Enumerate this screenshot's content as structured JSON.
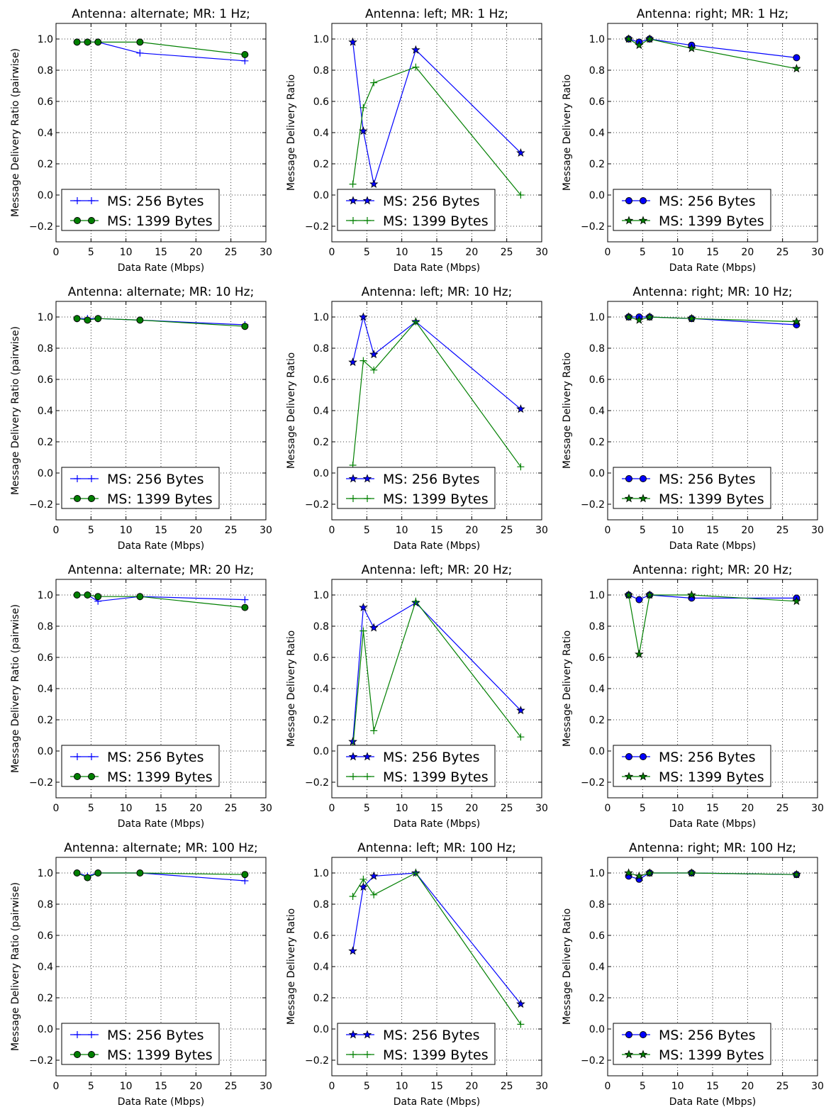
{
  "colors": {
    "blue": "#0000ff",
    "green": "#007f00",
    "black": "#000000",
    "grid": "#000000"
  },
  "chart_data": [
    {
      "type": "line",
      "title": "Antenna: alternate; MR: 1 Hz;",
      "xlabel": "Data Rate (Mbps)",
      "ylabel": "Message Delivery Ratio (pairwise)",
      "xlim": [
        0,
        30
      ],
      "ylim": [
        -0.3,
        1.1
      ],
      "xticks": [
        "0",
        "5",
        "10",
        "15",
        "20",
        "25",
        "30"
      ],
      "yticks": [
        "−0.2",
        "0.0",
        "0.2",
        "0.4",
        "0.6",
        "0.8",
        "1.0"
      ],
      "grid": true,
      "legend": "lower-left",
      "series": [
        {
          "name": "MS: 256 Bytes",
          "color": "blue",
          "marker": "plus",
          "x": [
            3,
            4.5,
            6,
            12,
            27
          ],
          "y": [
            0.98,
            0.98,
            0.98,
            0.91,
            0.86
          ]
        },
        {
          "name": "MS: 1399 Bytes",
          "color": "green",
          "marker": "circle",
          "x": [
            3,
            4.5,
            6,
            12,
            27
          ],
          "y": [
            0.98,
            0.98,
            0.98,
            0.98,
            0.9
          ]
        }
      ]
    },
    {
      "type": "line",
      "title": "Antenna: left; MR: 1 Hz;",
      "xlabel": "Data Rate (Mbps)",
      "ylabel": "Message Delivery Ratio",
      "xlim": [
        0,
        30
      ],
      "ylim": [
        -0.3,
        1.1
      ],
      "xticks": [
        "0",
        "5",
        "10",
        "15",
        "20",
        "25",
        "30"
      ],
      "yticks": [
        "−0.2",
        "0.0",
        "0.2",
        "0.4",
        "0.6",
        "0.8",
        "1.0"
      ],
      "grid": true,
      "legend": "lower-left",
      "series": [
        {
          "name": "MS: 256 Bytes",
          "color": "blue",
          "marker": "star",
          "x": [
            3,
            4.5,
            6,
            12,
            27
          ],
          "y": [
            0.98,
            0.41,
            0.07,
            0.93,
            0.27
          ]
        },
        {
          "name": "MS: 1399 Bytes",
          "color": "green",
          "marker": "plus",
          "x": [
            3,
            4.5,
            6,
            12,
            27
          ],
          "y": [
            0.07,
            0.56,
            0.72,
            0.82,
            0.0
          ]
        }
      ]
    },
    {
      "type": "line",
      "title": "Antenna: right; MR: 1 Hz;",
      "xlabel": "Data Rate (Mbps)",
      "ylabel": "Message Delivery Ratio",
      "xlim": [
        0,
        30
      ],
      "ylim": [
        -0.3,
        1.1
      ],
      "xticks": [
        "0",
        "5",
        "10",
        "15",
        "20",
        "25",
        "30"
      ],
      "yticks": [
        "−0.2",
        "0.0",
        "0.2",
        "0.4",
        "0.6",
        "0.8",
        "1.0"
      ],
      "grid": true,
      "legend": "lower-left",
      "series": [
        {
          "name": "MS: 256 Bytes",
          "color": "blue",
          "marker": "circle",
          "x": [
            3,
            4.5,
            6,
            12,
            27
          ],
          "y": [
            1.0,
            0.98,
            1.0,
            0.96,
            0.88
          ]
        },
        {
          "name": "MS: 1399 Bytes",
          "color": "green",
          "marker": "star",
          "x": [
            3,
            4.5,
            6,
            12,
            27
          ],
          "y": [
            1.0,
            0.96,
            1.0,
            0.94,
            0.81
          ]
        }
      ]
    },
    {
      "type": "line",
      "title": "Antenna: alternate; MR: 10 Hz;",
      "xlabel": "Data Rate (Mbps)",
      "ylabel": "Message Delivery Ratio (pairwise)",
      "xlim": [
        0,
        30
      ],
      "ylim": [
        -0.3,
        1.1
      ],
      "xticks": [
        "0",
        "5",
        "10",
        "15",
        "20",
        "25",
        "30"
      ],
      "yticks": [
        "−0.2",
        "0.0",
        "0.2",
        "0.4",
        "0.6",
        "0.8",
        "1.0"
      ],
      "grid": true,
      "legend": "lower-left",
      "series": [
        {
          "name": "MS: 256 Bytes",
          "color": "blue",
          "marker": "plus",
          "x": [
            3,
            4.5,
            6,
            12,
            27
          ],
          "y": [
            0.99,
            0.99,
            0.99,
            0.98,
            0.95
          ]
        },
        {
          "name": "MS: 1399 Bytes",
          "color": "green",
          "marker": "circle",
          "x": [
            3,
            4.5,
            6,
            12,
            27
          ],
          "y": [
            0.99,
            0.98,
            0.99,
            0.98,
            0.94
          ]
        }
      ]
    },
    {
      "type": "line",
      "title": "Antenna: left; MR: 10 Hz;",
      "xlabel": "Data Rate (Mbps)",
      "ylabel": "Message Delivery Ratio",
      "xlim": [
        0,
        30
      ],
      "ylim": [
        -0.3,
        1.1
      ],
      "xticks": [
        "0",
        "5",
        "10",
        "15",
        "20",
        "25",
        "30"
      ],
      "yticks": [
        "−0.2",
        "0.0",
        "0.2",
        "0.4",
        "0.6",
        "0.8",
        "1.0"
      ],
      "grid": true,
      "legend": "lower-left",
      "series": [
        {
          "name": "MS: 256 Bytes",
          "color": "blue",
          "marker": "star",
          "x": [
            3,
            4.5,
            6,
            12,
            27
          ],
          "y": [
            0.71,
            1.0,
            0.76,
            0.97,
            0.41
          ]
        },
        {
          "name": "MS: 1399 Bytes",
          "color": "green",
          "marker": "plus",
          "x": [
            3,
            4.5,
            6,
            12,
            27
          ],
          "y": [
            0.05,
            0.72,
            0.66,
            0.97,
            0.04
          ]
        }
      ]
    },
    {
      "type": "line",
      "title": "Antenna: right; MR: 10 Hz;",
      "xlabel": "Data Rate (Mbps)",
      "ylabel": "Message Delivery Ratio",
      "xlim": [
        0,
        30
      ],
      "ylim": [
        -0.3,
        1.1
      ],
      "xticks": [
        "0",
        "5",
        "10",
        "15",
        "20",
        "25",
        "30"
      ],
      "yticks": [
        "−0.2",
        "0.0",
        "0.2",
        "0.4",
        "0.6",
        "0.8",
        "1.0"
      ],
      "grid": true,
      "legend": "lower-left",
      "series": [
        {
          "name": "MS: 256 Bytes",
          "color": "blue",
          "marker": "circle",
          "x": [
            3,
            4.5,
            6,
            12,
            27
          ],
          "y": [
            1.0,
            1.0,
            1.0,
            0.99,
            0.95
          ]
        },
        {
          "name": "MS: 1399 Bytes",
          "color": "green",
          "marker": "star",
          "x": [
            3,
            4.5,
            6,
            12,
            27
          ],
          "y": [
            1.0,
            0.98,
            1.0,
            0.99,
            0.97
          ]
        }
      ]
    },
    {
      "type": "line",
      "title": "Antenna: alternate; MR: 20 Hz;",
      "xlabel": "Data Rate (Mbps)",
      "ylabel": "Message Delivery Ratio (pairwise)",
      "xlim": [
        0,
        30
      ],
      "ylim": [
        -0.3,
        1.1
      ],
      "xticks": [
        "0",
        "5",
        "10",
        "15",
        "20",
        "25",
        "30"
      ],
      "yticks": [
        "−0.2",
        "0.0",
        "0.2",
        "0.4",
        "0.6",
        "0.8",
        "1.0"
      ],
      "grid": true,
      "legend": "lower-left",
      "series": [
        {
          "name": "MS: 256 Bytes",
          "color": "blue",
          "marker": "plus",
          "x": [
            3,
            4.5,
            6,
            12,
            27
          ],
          "y": [
            1.0,
            1.0,
            0.96,
            0.99,
            0.97
          ]
        },
        {
          "name": "MS: 1399 Bytes",
          "color": "green",
          "marker": "circle",
          "x": [
            3,
            4.5,
            6,
            12,
            27
          ],
          "y": [
            1.0,
            1.0,
            0.99,
            0.99,
            0.92
          ]
        }
      ]
    },
    {
      "type": "line",
      "title": "Antenna: left; MR: 20 Hz;",
      "xlabel": "Data Rate (Mbps)",
      "ylabel": "Message Delivery Ratio",
      "xlim": [
        0,
        30
      ],
      "ylim": [
        -0.3,
        1.1
      ],
      "xticks": [
        "0",
        "5",
        "10",
        "15",
        "20",
        "25",
        "30"
      ],
      "yticks": [
        "−0.2",
        "0.0",
        "0.2",
        "0.4",
        "0.6",
        "0.8",
        "1.0"
      ],
      "grid": true,
      "legend": "lower-left",
      "series": [
        {
          "name": "MS: 256 Bytes",
          "color": "blue",
          "marker": "star",
          "x": [
            3,
            4.5,
            6,
            12,
            27
          ],
          "y": [
            0.06,
            0.92,
            0.79,
            0.95,
            0.26
          ]
        },
        {
          "name": "MS: 1399 Bytes",
          "color": "green",
          "marker": "plus",
          "x": [
            3,
            4.5,
            6,
            12,
            27
          ],
          "y": [
            0.02,
            0.77,
            0.13,
            0.96,
            0.09
          ]
        }
      ]
    },
    {
      "type": "line",
      "title": "Antenna: right; MR: 20 Hz;",
      "xlabel": "Data Rate (Mbps)",
      "ylabel": "Message Delivery Ratio",
      "xlim": [
        0,
        30
      ],
      "ylim": [
        -0.3,
        1.1
      ],
      "xticks": [
        "0",
        "5",
        "10",
        "15",
        "20",
        "25",
        "30"
      ],
      "yticks": [
        "−0.2",
        "0.0",
        "0.2",
        "0.4",
        "0.6",
        "0.8",
        "1.0"
      ],
      "grid": true,
      "legend": "lower-left",
      "series": [
        {
          "name": "MS: 256 Bytes",
          "color": "blue",
          "marker": "circle",
          "x": [
            3,
            4.5,
            6,
            12,
            27
          ],
          "y": [
            1.0,
            0.97,
            1.0,
            0.98,
            0.98
          ]
        },
        {
          "name": "MS: 1399 Bytes",
          "color": "green",
          "marker": "star",
          "x": [
            3,
            4.5,
            6,
            12,
            27
          ],
          "y": [
            1.0,
            0.62,
            1.0,
            1.0,
            0.96
          ]
        }
      ]
    },
    {
      "type": "line",
      "title": "Antenna: alternate; MR: 100 Hz;",
      "xlabel": "Data Rate (Mbps)",
      "ylabel": "Message Delivery Ratio (pairwise)",
      "xlim": [
        0,
        30
      ],
      "ylim": [
        -0.3,
        1.1
      ],
      "xticks": [
        "0",
        "5",
        "10",
        "15",
        "20",
        "25",
        "30"
      ],
      "yticks": [
        "−0.2",
        "0.0",
        "0.2",
        "0.4",
        "0.6",
        "0.8",
        "1.0"
      ],
      "grid": true,
      "legend": "lower-left",
      "series": [
        {
          "name": "MS: 256 Bytes",
          "color": "blue",
          "marker": "plus",
          "x": [
            3,
            4.5,
            6,
            12,
            27
          ],
          "y": [
            1.0,
            0.98,
            1.0,
            1.0,
            0.95
          ]
        },
        {
          "name": "MS: 1399 Bytes",
          "color": "green",
          "marker": "circle",
          "x": [
            3,
            4.5,
            6,
            12,
            27
          ],
          "y": [
            1.0,
            0.97,
            1.0,
            1.0,
            0.99
          ]
        }
      ]
    },
    {
      "type": "line",
      "title": "Antenna: left; MR: 100 Hz;",
      "xlabel": "Data Rate (Mbps)",
      "ylabel": "Message Delivery Ratio",
      "xlim": [
        0,
        30
      ],
      "ylim": [
        -0.3,
        1.1
      ],
      "xticks": [
        "0",
        "5",
        "10",
        "15",
        "20",
        "25",
        "30"
      ],
      "yticks": [
        "−0.2",
        "0.0",
        "0.2",
        "0.4",
        "0.6",
        "0.8",
        "1.0"
      ],
      "grid": true,
      "legend": "lower-left",
      "series": [
        {
          "name": "MS: 256 Bytes",
          "color": "blue",
          "marker": "star",
          "x": [
            3,
            4.5,
            6,
            12,
            27
          ],
          "y": [
            0.5,
            0.91,
            0.98,
            1.0,
            0.16
          ]
        },
        {
          "name": "MS: 1399 Bytes",
          "color": "green",
          "marker": "plus",
          "x": [
            3,
            4.5,
            6,
            12,
            27
          ],
          "y": [
            0.85,
            0.96,
            0.86,
            1.0,
            0.03
          ]
        }
      ]
    },
    {
      "type": "line",
      "title": "Antenna: right; MR: 100 Hz;",
      "xlabel": "Data Rate (Mbps)",
      "ylabel": "Message Delivery Ratio",
      "xlim": [
        0,
        30
      ],
      "ylim": [
        -0.3,
        1.1
      ],
      "xticks": [
        "0",
        "5",
        "10",
        "15",
        "20",
        "25",
        "30"
      ],
      "yticks": [
        "−0.2",
        "0.0",
        "0.2",
        "0.4",
        "0.6",
        "0.8",
        "1.0"
      ],
      "grid": true,
      "legend": "lower-left",
      "series": [
        {
          "name": "MS: 256 Bytes",
          "color": "blue",
          "marker": "circle",
          "x": [
            3,
            4.5,
            6,
            12,
            27
          ],
          "y": [
            0.98,
            0.96,
            1.0,
            1.0,
            0.99
          ]
        },
        {
          "name": "MS: 1399 Bytes",
          "color": "green",
          "marker": "star",
          "x": [
            3,
            4.5,
            6,
            12,
            27
          ],
          "y": [
            1.0,
            0.98,
            1.0,
            1.0,
            0.99
          ]
        }
      ]
    }
  ]
}
